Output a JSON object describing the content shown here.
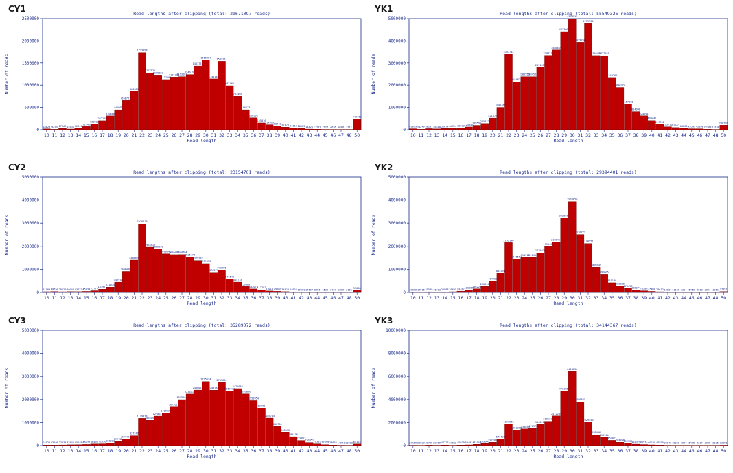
{
  "panels": [
    {
      "label": "CY1",
      "chart_data": {
        "type": "bar",
        "title": "Read lengths after clipping (total: 20671097 reads)",
        "xlabel": "Read length",
        "ylabel": "Number of reads",
        "categories": [
          "10",
          "11",
          "12",
          "13",
          "14",
          "15",
          "16",
          "17",
          "18",
          "19",
          "20",
          "21",
          "22",
          "23",
          "24",
          "25",
          "26",
          "27",
          "28",
          "29",
          "30",
          "31",
          "32",
          "33",
          "34",
          "35",
          "36",
          "37",
          "38",
          "39",
          "40",
          "41",
          "42",
          "43",
          "44",
          "45",
          "46",
          "47",
          "48",
          "50"
        ],
        "values": [
          18829,
          9429,
          27666,
          15531,
          32641,
          72242,
          130932,
          202249,
          310608,
          445961,
          658761,
          866381,
          1733098,
          1277922,
          1229182,
          1127500,
          1183399,
          1193181,
          1240199,
          1433731,
          1566367,
          1143169,
          1537251,
          987466,
          753405,
          446273,
          266591,
          155016,
          114499,
          88443,
          57876,
          41113,
          28183,
          14421,
          11272,
          7177,
          4636,
          4186,
          3111,
          240763
        ],
        "ylim": [
          0,
          2500000
        ],
        "yticks": [
          "0",
          "500000",
          "1000000",
          "1500000",
          "2000000",
          "2500000"
        ],
        "bar_labels": [
          "18829",
          "9429",
          "27666",
          "15531",
          "32641",
          "72242",
          "130932",
          "202249",
          "310608",
          "445961",
          "658761",
          "866381",
          "1733098",
          "1277922",
          "1229182",
          "1127500",
          "1183399",
          "1193181",
          "1240199",
          "1433731",
          "1566367",
          "1143169",
          "1537251",
          "987466",
          "753405",
          "446273",
          "266591",
          "155016",
          "114499",
          "88443",
          "57876",
          "41113",
          "28183",
          "14421",
          "11272",
          "7177",
          "4636",
          "4186",
          "3111",
          "240763"
        ],
        "color": "#c00000"
      }
    },
    {
      "label": "YK1",
      "chart_data": {
        "type": "bar",
        "title": "Read lengths after clipping (total: 55549326 reads)",
        "xlabel": "Read length",
        "ylabel": "Number of reads",
        "categories": [
          "10",
          "11",
          "12",
          "13",
          "14",
          "15",
          "16",
          "17",
          "18",
          "19",
          "20",
          "21",
          "22",
          "23",
          "24",
          "25",
          "26",
          "27",
          "28",
          "29",
          "30",
          "31",
          "32",
          "33",
          "34",
          "35",
          "36",
          "37",
          "38",
          "39",
          "40",
          "41",
          "42",
          "43",
          "44",
          "45",
          "46",
          "47",
          "48",
          "50"
        ],
        "values": [
          43699,
          20452,
          48297,
          36418,
          52874,
          64924,
          75033,
          125056,
          199593,
          285432,
          521876,
          1001469,
          3397744,
          2154834,
          2385556,
          2384564,
          2811459,
          3343312,
          3586619,
          4413069,
          4994713,
          3939706,
          4779534,
          3336499,
          3327929,
          2349262,
          1896974,
          1157135,
          814998,
          624951,
          409442,
          247702,
          133710,
          97507,
          61826,
          43549,
          42108,
          22169,
          13106,
          206209
        ],
        "ylim": [
          0,
          5000000
        ],
        "yticks": [
          "0",
          "1000000",
          "2000000",
          "3000000",
          "4000000",
          "5000000"
        ],
        "bar_labels": [
          "43699",
          "20452",
          "48297",
          "36418",
          "52874",
          "64924",
          "75033",
          "125056",
          "199593",
          "285432",
          "521876",
          "1001469",
          "3397744",
          "2154834",
          "2385556",
          "2384564",
          "2811459",
          "3343312",
          "3586619",
          "4413069",
          "4994713",
          "3939706",
          "4779534",
          "3336499",
          "3327929",
          "2349262",
          "1896974",
          "1157135",
          "814998",
          "624951",
          "409442",
          "247702",
          "133710",
          "97507",
          "61826",
          "43549",
          "42108",
          "22169",
          "13106",
          "206209"
        ],
        "color": "#c00000"
      }
    },
    {
      "label": "CY2",
      "chart_data": {
        "type": "bar",
        "title": "Read lengths after clipping (total: 23154701 reads)",
        "xlabel": "Read length",
        "ylabel": "Number of reads",
        "categories": [
          "10",
          "11",
          "12",
          "13",
          "14",
          "15",
          "16",
          "17",
          "18",
          "19",
          "20",
          "21",
          "22",
          "23",
          "24",
          "25",
          "26",
          "27",
          "28",
          "29",
          "30",
          "31",
          "32",
          "33",
          "34",
          "35",
          "36",
          "37",
          "38",
          "39",
          "40",
          "41",
          "42",
          "43",
          "44",
          "45",
          "46",
          "47",
          "48",
          "50"
        ],
        "values": [
          31509,
          40654,
          29620,
          36048,
          33632,
          45934,
          73779,
          141961,
          231079,
          442971,
          908486,
          1398899,
          2970619,
          1963512,
          1886950,
          1676646,
          1639656,
          1644784,
          1525578,
          1379282,
          1251659,
          870277,
          973965,
          576543,
          444718,
          259388,
          152071,
          113297,
          63018,
          49180,
          34015,
          24028,
          19600,
          14697,
          8386,
          6536,
          3727,
          2989,
          2161,
          95028
        ],
        "ylim": [
          0,
          5000000
        ],
        "yticks": [
          "0",
          "1000000",
          "2000000",
          "3000000",
          "4000000",
          "5000000"
        ],
        "bar_labels": [
          "31509",
          "40654",
          "29620",
          "36048",
          "33632",
          "45934",
          "73779",
          "141961",
          "231079",
          "442971",
          "908486",
          "1398899",
          "2970619",
          "1963512",
          "1886950",
          "1676646",
          "1639656",
          "1644784",
          "1525578",
          "1379282",
          "1251659",
          "870277",
          "973965",
          "576543",
          "444718",
          "259388",
          "152071",
          "113297",
          "63018",
          "49180",
          "34015",
          "24028",
          "19600",
          "14697",
          "8386",
          "6536",
          "3727",
          "2989",
          "2161",
          "95028"
        ],
        "color": "#c00000"
      }
    },
    {
      "label": "YK2",
      "chart_data": {
        "type": "bar",
        "title": "Read lengths after clipping (total: 29394401 reads)",
        "xlabel": "Read length",
        "ylabel": "Number of reads",
        "categories": [
          "10",
          "11",
          "12",
          "13",
          "14",
          "15",
          "16",
          "17",
          "18",
          "19",
          "20",
          "21",
          "22",
          "23",
          "24",
          "25",
          "26",
          "27",
          "28",
          "29",
          "30",
          "31",
          "32",
          "33",
          "34",
          "35",
          "36",
          "37",
          "38",
          "39",
          "40",
          "41",
          "42",
          "43",
          "44",
          "45",
          "46",
          "47",
          "48",
          "50"
        ],
        "values": [
          19906,
          16916,
          25509,
          16593,
          22888,
          29655,
          55387,
          100187,
          156223,
          260516,
          484900,
          834394,
          2162146,
          1446554,
          1511912,
          1518154,
          1719876,
          1990450,
          2188451,
          3228661,
          3938050,
          2510773,
          2120951,
          1096549,
          792605,
          419100,
          282826,
          179496,
          108074,
          71288,
          45856,
          28612,
          16607,
          11129,
          7204,
          5450,
          4818,
          2921,
          1961,
          37591
        ],
        "ylim": [
          0,
          5000000
        ],
        "yticks": [
          "0",
          "1000000",
          "2000000",
          "3000000",
          "4000000",
          "5000000"
        ],
        "bar_labels": [
          "19906",
          "16916",
          "25509",
          "16593",
          "22888",
          "29655",
          "55387",
          "100187",
          "156223",
          "260516",
          "484900",
          "834394",
          "2162146",
          "1446554",
          "1511912",
          "1518154",
          "1719876",
          "1990450",
          "2188451",
          "3228661",
          "3938050",
          "2510773",
          "2120951",
          "1096549",
          "792605",
          "419100",
          "282826",
          "179496",
          "108074",
          "71288",
          "45856",
          "28612",
          "16607",
          "11129",
          "7204",
          "5450",
          "4818",
          "2921",
          "1961",
          "37591"
        ],
        "color": "#c00000"
      }
    },
    {
      "label": "CY3",
      "chart_data": {
        "type": "bar",
        "title": "Read lengths after clipping (total: 35289072 reads)",
        "xlabel": "Read length",
        "ylabel": "Number of reads",
        "categories": [
          "10",
          "11",
          "12",
          "13",
          "14",
          "15",
          "16",
          "17",
          "18",
          "19",
          "20",
          "21",
          "22",
          "23",
          "24",
          "25",
          "26",
          "27",
          "28",
          "29",
          "30",
          "31",
          "32",
          "33",
          "34",
          "35",
          "36",
          "37",
          "38",
          "39",
          "40",
          "41",
          "42",
          "43",
          "44",
          "45",
          "46",
          "47",
          "48",
          "50"
        ],
        "values": [
          24928,
          23100,
          27034,
          33546,
          35148,
          46577,
          66595,
          71036,
          103020,
          172721,
          284427,
          427249,
          1179978,
          1093497,
          1278642,
          1409537,
          1675616,
          1993964,
          2235417,
          2408059,
          2775524,
          2403267,
          2733634,
          2367613,
          2471086,
          2241066,
          1950954,
          1626954,
          1189745,
          830760,
          565552,
          384476,
          220612,
          130951,
          70535,
          37699,
          23652,
          14641,
          10000,
          65163
        ],
        "ylim": [
          0,
          5000000
        ],
        "yticks": [
          "0",
          "1000000",
          "2000000",
          "3000000",
          "4000000",
          "5000000"
        ],
        "bar_labels": [
          "24928",
          "23100",
          "27034",
          "33546",
          "35148",
          "46577",
          "66595",
          "71036",
          "103020",
          "172721",
          "284427",
          "427249",
          "1179978",
          "1093497",
          "1278642",
          "1409537",
          "1675616",
          "1993964",
          "2235417",
          "2408059",
          "2775524",
          "2403267",
          "2733634",
          "2367613",
          "2471086",
          "2241066",
          "1950954",
          "1626954",
          "1189745",
          "830760",
          "565552",
          "384476",
          "220612",
          "130951",
          "70535",
          "37699",
          "23652",
          "14641",
          "10000",
          "65163"
        ],
        "color": "#c00000"
      }
    },
    {
      "label": "YK3",
      "chart_data": {
        "type": "bar",
        "title": "Read lengths after clipping (total: 34144367 reads)",
        "xlabel": "Read length",
        "ylabel": "Number of reads",
        "categories": [
          "10",
          "11",
          "12",
          "13",
          "14",
          "15",
          "16",
          "17",
          "18",
          "19",
          "20",
          "21",
          "22",
          "23",
          "24",
          "25",
          "26",
          "27",
          "28",
          "29",
          "30",
          "31",
          "32",
          "33",
          "34",
          "35",
          "36",
          "37",
          "38",
          "39",
          "40",
          "41",
          "42",
          "43",
          "44",
          "45",
          "46",
          "47",
          "48",
          "50"
        ],
        "values": [
          27159,
          20923,
          39725,
          29319,
          48226,
          27916,
          45029,
          59401,
          107413,
          163666,
          282280,
          576428,
          1867962,
          1350289,
          1439854,
          1476976,
          1840215,
          2105310,
          2572239,
          4731956,
          6414836,
          3796831,
          2029550,
          938486,
          716944,
          452027,
          284500,
          192555,
          115379,
          85974,
          60150,
          46590,
          26640,
          18030,
          7697,
          5415,
          4217,
          2955,
          2135,
          33955
        ],
        "ylim": [
          0,
          10000000
        ],
        "yticks": [
          "0",
          "2000000",
          "4000000",
          "6000000",
          "8000000",
          "10000000"
        ],
        "bar_labels": [
          "27159",
          "20923",
          "39725",
          "29319",
          "48226",
          "27916",
          "45029",
          "59401",
          "107413",
          "163666",
          "282280",
          "576428",
          "1867962",
          "1350289",
          "1439854",
          "1476976",
          "1840215",
          "2105310",
          "2572239",
          "4731956",
          "6414836",
          "3796831",
          "2029550",
          "938486",
          "716944",
          "452027",
          "284500",
          "192555",
          "115379",
          "85974",
          "60150",
          "46590",
          "26640",
          "18030",
          "7697",
          "5415",
          "4217",
          "2955",
          "2135",
          "33955"
        ],
        "color": "#c00000"
      }
    }
  ],
  "style": {
    "axis_color": "#1a2a8a",
    "text_color": "#1a2a8a",
    "bar_color": "#c00000",
    "bar_edge": "#6a0000"
  }
}
